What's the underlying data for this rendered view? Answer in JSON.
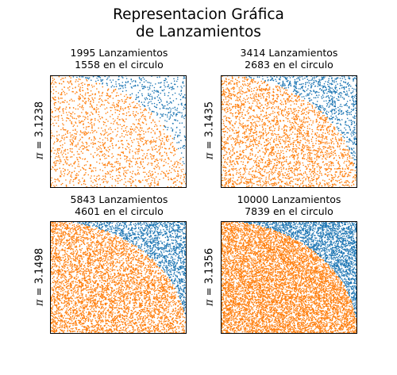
{
  "figure": {
    "title_line1": "Representacion Gráfica",
    "title_line2": "de Lanzamientos"
  },
  "colors": {
    "outside": "#1f77b4",
    "inside": "#ff7f0e"
  },
  "chart_data": [
    {
      "type": "scatter",
      "title_line1": "1995 Lanzamientos",
      "title_line2": "1558 en el circulo",
      "ylabel_symbol": "π",
      "ylabel_value": "= 3.1238",
      "total": 1995,
      "inside": 1558,
      "xlim": [
        0,
        1
      ],
      "ylim": [
        0,
        1
      ],
      "grid": false,
      "series": [
        {
          "name": "",
          "region": "outside circle",
          "color": "#1f77b4",
          "count": 437
        },
        {
          "name": "",
          "region": "inside circle",
          "color": "#ff7f0e",
          "count": 1558
        }
      ]
    },
    {
      "type": "scatter",
      "title_line1": "3414 Lanzamientos",
      "title_line2": "2683 en el circulo",
      "ylabel_symbol": "π",
      "ylabel_value": "= 3.1435",
      "total": 3414,
      "inside": 2683,
      "xlim": [
        0,
        1
      ],
      "ylim": [
        0,
        1
      ],
      "grid": false,
      "series": [
        {
          "name": "",
          "region": "outside circle",
          "color": "#1f77b4",
          "count": 731
        },
        {
          "name": "",
          "region": "inside circle",
          "color": "#ff7f0e",
          "count": 2683
        }
      ]
    },
    {
      "type": "scatter",
      "title_line1": "5843 Lanzamientos",
      "title_line2": "4601 en el circulo",
      "ylabel_symbol": "π",
      "ylabel_value": "= 3.1498",
      "total": 5843,
      "inside": 4601,
      "xlim": [
        0,
        1
      ],
      "ylim": [
        0,
        1
      ],
      "grid": false,
      "series": [
        {
          "name": "",
          "region": "outside circle",
          "color": "#1f77b4",
          "count": 1242
        },
        {
          "name": "",
          "region": "inside circle",
          "color": "#ff7f0e",
          "count": 4601
        }
      ]
    },
    {
      "type": "scatter",
      "title_line1": "10000 Lanzamientos",
      "title_line2": "7839 en el circulo",
      "ylabel_symbol": "π",
      "ylabel_value": "= 3.1356",
      "total": 10000,
      "inside": 7839,
      "xlim": [
        0,
        1
      ],
      "ylim": [
        0,
        1
      ],
      "grid": false,
      "series": [
        {
          "name": "",
          "region": "outside circle",
          "color": "#1f77b4",
          "count": 2161
        },
        {
          "name": "",
          "region": "inside circle",
          "color": "#ff7f0e",
          "count": 7839
        }
      ]
    }
  ]
}
